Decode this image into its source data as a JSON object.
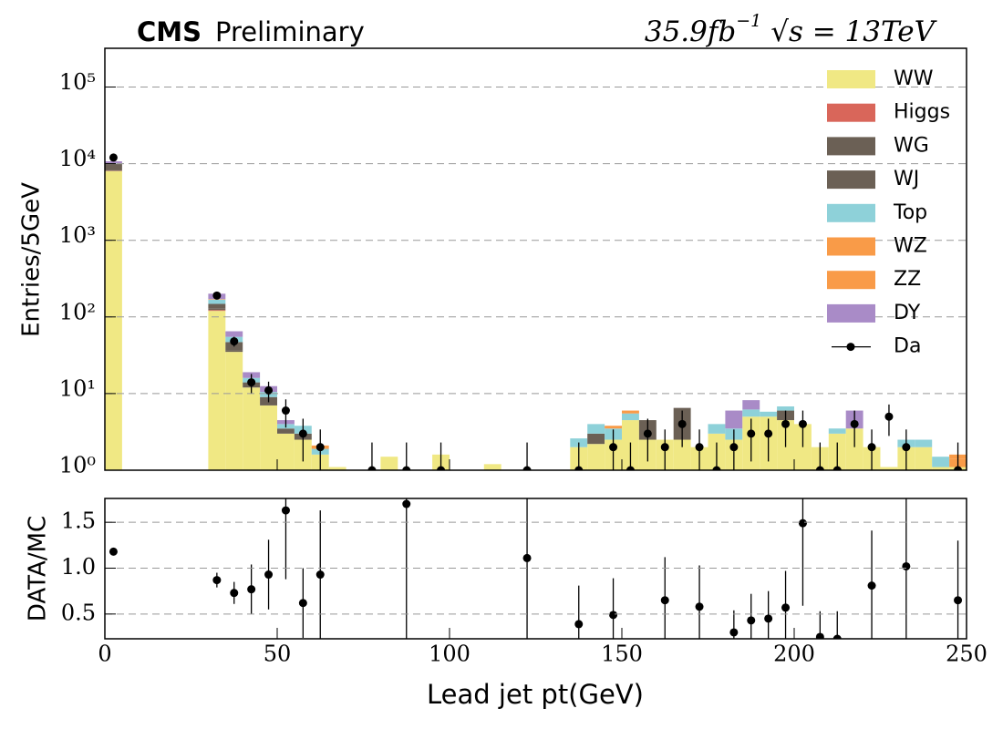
{
  "chart_data": [
    {
      "type": "stacked_histogram",
      "title_bold": "CMS",
      "title": "Preliminary",
      "lumi": "35.9fb",
      "lumi_exponent": "−1",
      "energy": "√s = 13TeV",
      "ylabel": "Entries/5GeV",
      "log_scale": true,
      "grid": true,
      "legend_corner": "upper right",
      "bins": [
        0,
        5,
        10,
        15,
        20,
        25,
        30,
        35,
        40,
        45,
        50,
        55,
        60,
        65,
        70,
        75,
        80,
        85,
        90,
        95,
        100,
        105,
        110,
        115,
        120,
        125,
        130,
        135,
        140,
        145,
        150,
        155,
        160,
        165,
        170,
        175,
        180,
        185,
        190,
        195,
        200,
        205,
        210,
        215,
        220,
        225,
        230,
        235,
        240,
        245,
        250
      ],
      "xlim": [
        0,
        250
      ],
      "ylim": [
        1,
        320000
      ],
      "yticks": [
        {
          "value": 1,
          "label": "10⁰"
        },
        {
          "value": 10,
          "label": "10¹"
        },
        {
          "value": 100,
          "label": "10²"
        },
        {
          "value": 1000,
          "label": "10³"
        },
        {
          "value": 10000,
          "label": "10⁴"
        },
        {
          "value": 100000,
          "label": "10⁵"
        }
      ],
      "series": [
        {
          "name": "WW",
          "color": "#f0e884",
          "values": [
            8000,
            0,
            0,
            0,
            0,
            0,
            120,
            35,
            12,
            7,
            3,
            2.5,
            1.6,
            1.1,
            1.0,
            0.9,
            1.5,
            0.9,
            0.8,
            1.6,
            0.9,
            0.5,
            1.2,
            0.9,
            0.8,
            0.9,
            0.8,
            2.0,
            2.2,
            2.5,
            4.5,
            2.5,
            2.5,
            2.5,
            2.0,
            3.0,
            2.5,
            5,
            5,
            4.5,
            4,
            2,
            3,
            3.5,
            2,
            1.1,
            2,
            2,
            1.1,
            1.1
          ]
        },
        {
          "name": "Higgs",
          "color": "#d9665a",
          "values": [
            80,
            0,
            0,
            0,
            0,
            0,
            3,
            0,
            0,
            0,
            0,
            0,
            0,
            0,
            0,
            0,
            0,
            0,
            0,
            0,
            0,
            0,
            0,
            0,
            0,
            0,
            0,
            0,
            0,
            0,
            0,
            0,
            0,
            0,
            0,
            0,
            0,
            0,
            0,
            0,
            0,
            0,
            0,
            0,
            0,
            0,
            0,
            0,
            0,
            0
          ]
        },
        {
          "name": "WG",
          "color": "#6b6055",
          "values": [
            300,
            0,
            0,
            0,
            0,
            0,
            5,
            2,
            0,
            0,
            0,
            0,
            0,
            0,
            0,
            0,
            0,
            0,
            0,
            0,
            0,
            0,
            0,
            0,
            0,
            0,
            0,
            0,
            0,
            0,
            0,
            0,
            0,
            0,
            0,
            0,
            0,
            0,
            0,
            0,
            0,
            0,
            0,
            0,
            0,
            0,
            0,
            0,
            0,
            0
          ]
        },
        {
          "name": "WJ",
          "color": "#6b6055",
          "values": [
            1500,
            0,
            0,
            0,
            0,
            0,
            20,
            10,
            2,
            2,
            0.5,
            0.5,
            0,
            0,
            0,
            0,
            0,
            0,
            0,
            0,
            0,
            0,
            0,
            0,
            0,
            0,
            0,
            0,
            0.8,
            0,
            0,
            2.0,
            0,
            4.0,
            0,
            0,
            0,
            0,
            0,
            1.5,
            0,
            0,
            0,
            0,
            0,
            0,
            0,
            0,
            0,
            0
          ]
        },
        {
          "name": "Top",
          "color": "#8ed1d9",
          "values": [
            200,
            0,
            0,
            0,
            0,
            0,
            20,
            8,
            2,
            1.5,
            0.5,
            0.8,
            0.3,
            0,
            0,
            0,
            0,
            0,
            0,
            0,
            0,
            0,
            0,
            0,
            0,
            0,
            0,
            0.6,
            1,
            1,
            1,
            0,
            0,
            0,
            0,
            1,
            1,
            1.2,
            0.8,
            0.8,
            0,
            0,
            0.5,
            0,
            0,
            0,
            0.5,
            0.5,
            0.4,
            0
          ]
        },
        {
          "name": "WZ",
          "color": "#f99b48",
          "values": [
            30,
            0,
            0,
            0,
            0,
            0,
            2,
            0,
            0,
            0,
            0,
            0,
            0.2,
            0,
            0,
            0,
            0,
            0,
            0,
            0,
            0,
            0,
            0,
            0,
            0,
            0,
            0,
            0,
            0,
            0.3,
            0.5,
            0,
            0,
            0,
            0,
            0,
            0,
            0,
            0,
            0,
            0,
            0,
            0,
            0,
            0,
            0,
            0,
            0,
            0,
            0.3
          ]
        },
        {
          "name": "ZZ",
          "color": "#f99b48",
          "values": [
            20,
            0,
            0,
            0,
            0,
            0,
            1,
            0,
            0,
            0,
            0,
            0,
            0,
            0,
            0,
            0,
            0,
            0,
            0,
            0,
            0,
            0,
            0,
            0,
            0,
            0,
            0,
            0,
            0,
            0,
            0,
            0,
            0,
            0,
            0,
            0,
            0,
            0,
            0,
            0,
            0,
            0,
            0,
            0,
            0,
            0,
            0,
            0,
            0,
            0.2
          ]
        },
        {
          "name": "DY",
          "color": "#a98bc7",
          "values": [
            600,
            0,
            0,
            0,
            0,
            0,
            30,
            10,
            3,
            2,
            0.5,
            0,
            0,
            0,
            0,
            0,
            0,
            0,
            0,
            0,
            0,
            0,
            0,
            0,
            0,
            0,
            0,
            0,
            0,
            0,
            0,
            0,
            0,
            0,
            0,
            0,
            2.5,
            2,
            0,
            0,
            0,
            0,
            0,
            2.5,
            0,
            0,
            0,
            0,
            0,
            0
          ]
        }
      ],
      "data": {
        "name": "Da",
        "color": "#000000",
        "x": [
          2.5,
          32.5,
          37.5,
          42.5,
          47.5,
          52.5,
          57.5,
          62.5,
          77.5,
          87.5,
          97.5,
          122.5,
          137.5,
          147.5,
          152.5,
          157.5,
          162.5,
          167.5,
          172.5,
          177.5,
          182.5,
          187.5,
          192.5,
          197.5,
          202.5,
          207.5,
          212.5,
          217.5,
          222.5,
          227.5,
          232.5,
          247.5
        ],
        "values": [
          12000,
          190,
          48,
          14,
          11,
          6,
          3,
          2,
          1,
          1,
          1,
          1,
          1,
          2,
          1,
          3,
          2,
          4,
          2,
          1,
          2,
          3,
          3,
          4,
          4,
          1,
          1,
          4,
          2,
          5,
          2,
          1
        ],
        "errors": [
          110,
          14,
          7,
          4,
          3.3,
          2.4,
          1.7,
          1.4,
          1.3,
          1.3,
          1.3,
          1.3,
          1.3,
          1.4,
          1.3,
          1.7,
          1.4,
          2,
          1.4,
          1.3,
          1.4,
          1.7,
          1.7,
          2,
          2,
          1.3,
          1.3,
          2,
          1.4,
          2.2,
          1.4,
          1.3
        ]
      }
    },
    {
      "type": "errorbar",
      "ylabel": "DATA/MC",
      "xlabel": "Lead jet pt(GeV)",
      "grid": true,
      "xlim": [
        0,
        250
      ],
      "xticks": [
        0,
        50,
        100,
        150,
        200,
        250
      ],
      "ylim": [
        0.23,
        1.76
      ],
      "yticks": [
        0.5,
        {
          "value": 1.0,
          "label": "1.0"
        },
        1.5
      ],
      "color": "#000000",
      "x": [
        2.5,
        32.5,
        37.5,
        42.5,
        47.5,
        52.5,
        57.5,
        62.5,
        87.5,
        122.5,
        137.5,
        147.5,
        162.5,
        172.5,
        182.5,
        187.5,
        192.5,
        197.5,
        202.5,
        207.5,
        212.5,
        222.5,
        232.5,
        247.5
      ],
      "values": [
        1.18,
        0.87,
        0.73,
        0.77,
        0.93,
        1.63,
        0.62,
        0.93,
        1.7,
        1.11,
        0.39,
        0.49,
        0.65,
        0.58,
        0.3,
        0.43,
        0.45,
        0.57,
        1.49,
        0.25,
        0.23,
        0.81,
        1.02,
        0.65
      ],
      "errors": [
        0.01,
        0.08,
        0.12,
        0.27,
        0.38,
        0.75,
        0.38,
        0.7,
        1.7,
        1.1,
        0.42,
        0.4,
        0.47,
        0.45,
        0.24,
        0.29,
        0.3,
        0.4,
        0.9,
        0.28,
        0.3,
        0.6,
        1.0,
        0.65
      ]
    }
  ]
}
